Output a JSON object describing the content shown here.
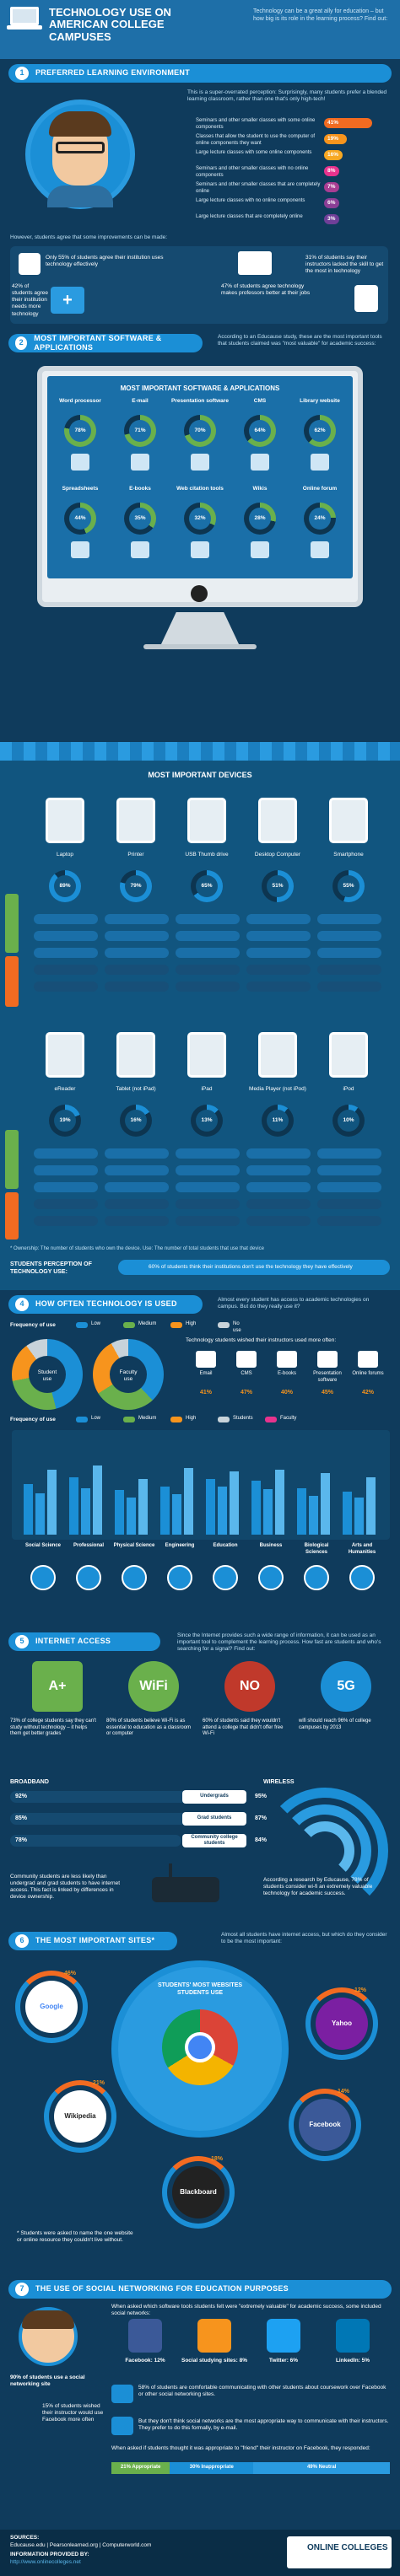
{
  "header": {
    "title": "TECHNOLOGY USE ON AMERICAN COLLEGE CAMPUSES",
    "intro": "Technology can be a great ally for education – but how big is its role in the learning process? Find out:"
  },
  "s1": {
    "num": "1",
    "heading": "PREFERRED LEARNING ENVIRONMENT",
    "lead": "This is a super-overrated perception: Surprisingly, many students prefer a blended learning classroom, rather than one that's only high-tech!",
    "options": [
      {
        "label": "Seminars and other smaller classes with some online components",
        "pct": "41%",
        "color": "#f26b21",
        "frac": 0.41
      },
      {
        "label": "Classes that allow the student to use the computer of online components they want",
        "pct": "19%",
        "color": "#f7941d",
        "frac": 0.19
      },
      {
        "label": "Large lecture classes with some online components",
        "pct": "16%",
        "color": "#f7a823",
        "frac": 0.16
      },
      {
        "label": "Seminars and other smaller classes with no online components",
        "pct": "8%",
        "color": "#e8338d",
        "frac": 0.08
      },
      {
        "label": "Seminars and other smaller classes that are completely online",
        "pct": "7%",
        "color": "#a83d93",
        "frac": 0.07
      },
      {
        "label": "Large lecture classes with no online components",
        "pct": "6%",
        "color": "#8b3e96",
        "frac": 0.06
      },
      {
        "label": "Large lecture classes that are completely online",
        "pct": "3%",
        "color": "#6f3f98",
        "frac": 0.03
      }
    ],
    "however": "However, students agree that some improvements can be made:",
    "facts": [
      "Only 55% of students agree their institution uses technology effectively",
      "31% of students say their instructors lacked the skill to get the most in technology",
      "42% of students agree their institution needs more technology",
      "47% of students agree technology makes professors better at their jobs"
    ]
  },
  "s2": {
    "num": "2",
    "heading": "MOST IMPORTANT SOFTWARE & APPLICATIONS",
    "lead": "According to an Educause study, these are the most important tools that students claimed was \"most valuable\" for academic success:",
    "screen_title": "MOST IMPORTANT SOFTWARE & APPLICATIONS",
    "apps": [
      {
        "label": "Word processor",
        "pct": "78%",
        "frac": 0.78
      },
      {
        "label": "E-mail",
        "pct": "71%",
        "frac": 0.71
      },
      {
        "label": "Presentation software",
        "pct": "70%",
        "frac": 0.7
      },
      {
        "label": "CMS",
        "pct": "64%",
        "frac": 0.64
      },
      {
        "label": "Library website",
        "pct": "62%",
        "frac": 0.62
      },
      {
        "label": "Spreadsheets",
        "pct": "44%",
        "frac": 0.44
      },
      {
        "label": "E-books",
        "pct": "35%",
        "frac": 0.35
      },
      {
        "label": "Web citation tools",
        "pct": "32%",
        "frac": 0.32
      },
      {
        "label": "Wikis",
        "pct": "28%",
        "frac": 0.28
      },
      {
        "label": "Online forum",
        "pct": "24%",
        "frac": 0.24
      }
    ]
  },
  "s3": {
    "num": "3",
    "heading": "MOST IMPORTANT DEVICES",
    "devices_row1": [
      "Laptop",
      "Printer",
      "USB Thumb drive",
      "Desktop Computer",
      "Smartphone"
    ],
    "pct_row1": [
      "89%",
      "79%",
      "65%",
      "51%",
      "55%"
    ],
    "devices_row2": [
      "eReader",
      "Tablet (not iPad)",
      "iPad",
      "Media Player (not iPod)",
      "iPod"
    ],
    "pct_row2": [
      "19%",
      "16%",
      "13%",
      "11%",
      "10%"
    ],
    "ownership_label": "Ownership",
    "importance_label": "Importance",
    "footnote": "* Ownership: The number of students who own the device. Use: The number of total students that use that device",
    "perception_title": "STUDENTS PERCEPTION OF TECHNOLOGY USE:",
    "perception_text": "60% of students think their institutions don't use the technology they have effectively"
  },
  "s4": {
    "num": "4",
    "heading": "HOW OFTEN TECHNOLOGY IS USED",
    "lead": "Almost every student has access to academic technologies on campus. But do they really use it?",
    "freq_label": "Frequency of use",
    "legend": [
      "Low",
      "Medium",
      "High",
      "No use"
    ],
    "donut1": "Student use",
    "donut2": "Faculty use",
    "faculty_lead": "Technology students wished their instructors used more often:",
    "wished": [
      {
        "label": "Email",
        "pct": "41%"
      },
      {
        "label": "CMS",
        "pct": "47%"
      },
      {
        "label": "E-books",
        "pct": "40%"
      },
      {
        "label": "Presentation software",
        "pct": "45%"
      },
      {
        "label": "Online forums",
        "pct": "42%"
      }
    ],
    "legend2": [
      "Low",
      "Medium",
      "High",
      "Students",
      "Faculty"
    ],
    "subjects": [
      "Social Science",
      "Professional",
      "Physical Science",
      "Engineering",
      "Education",
      "Business",
      "Biological Sciences",
      "Arts and Humanities"
    ]
  },
  "s5": {
    "num": "5",
    "heading": "INTERNET ACCESS",
    "lead": "Since the Internet provides such a wide range of information, it can be used as an important tool to complement the learning process. How fast are students and who's searching for a signal? Find out:",
    "stats": [
      {
        "big": "A+",
        "text": "73% of college students say they can't study without technology – it helps them get better grades"
      },
      {
        "big": "WiFi",
        "text": "80% of students believe Wi-Fi is as essential to education as a classroom or computer"
      },
      {
        "big": "NO",
        "text": "60% of students said they wouldn't attend a college that didn't offer free Wi-Fi"
      },
      {
        "big": "5G",
        "text": "wifi should reach 96% of college campuses by 2013"
      }
    ],
    "broadband_label": "BROADBAND",
    "wireless_label": "WIRELESS",
    "groups": [
      {
        "label": "Undergrads",
        "bb": "92%",
        "wl": "95%",
        "frac": 0.92
      },
      {
        "label": "Grad students",
        "bb": "85%",
        "wl": "87%",
        "frac": 0.85
      },
      {
        "label": "Community college students",
        "bb": "78%",
        "wl": "84%",
        "frac": 0.78
      }
    ],
    "note_left": "Community students are less likely than undergrad and grad students to have internet access. This fact is linked by differences in device ownership.",
    "note_right": "According a research by Educause, 78% of students consider wi-fi an extremely valuable technology for academic success."
  },
  "s6": {
    "num": "6",
    "heading": "THE MOST IMPORTANT SITES*",
    "lead": "Almost all students have internet access, but which do they consider to be the most important:",
    "circle_title": "STUDENTS' MOST WEBSITES STUDENTS USE",
    "sites": [
      {
        "name": "Google",
        "pct": "46%"
      },
      {
        "name": "Yahoo",
        "pct": "12%"
      },
      {
        "name": "Wikipedia",
        "pct": "21%"
      },
      {
        "name": "Facebook",
        "pct": "14%"
      },
      {
        "name": "Blackboard",
        "pct": "18%"
      }
    ],
    "footnote": "* Students were asked to name the one website or online resource they couldn't live without."
  },
  "s7": {
    "num": "7",
    "heading": "THE USE OF SOCIAL NETWORKING FOR EDUCATION PURPOSES",
    "lead": "When asked which software tools students felt were \"extremely valuable\" for academic success, some included social networks:",
    "networks": [
      {
        "label": "Facebook: 12%",
        "color": "#3b5998"
      },
      {
        "label": "Social studying sites: 8%",
        "color": "#f7941d"
      },
      {
        "label": "Twitter: 6%",
        "color": "#1da1f2"
      },
      {
        "label": "LinkedIn: 5%",
        "color": "#0077b5"
      }
    ],
    "stat1": "90% of students use a social networking site",
    "stat2": "15% of students wished their instructor would use Facebook more often",
    "like_text": "58% of students are comfortable communicating with other students about coursework over Facebook or other social networking sites.",
    "dislike_text": "But they don't think social networks are the most appropriate way to communicate with their instructors. They prefer to do this formally, by e-mail.",
    "friend_lead": "When asked if students thought it was appropriate to \"friend\" their instructor on Facebook, they responded:",
    "friend_bars": [
      "21% Appropriate",
      "30% Inappropriate",
      "49% Neutral"
    ]
  },
  "footer": {
    "sources_title": "SOURCES:",
    "sources": "Educause.edu | Pearsonlearned.org | Computerworld.com",
    "info_title": "INFORMATION PROVIDED BY:",
    "info": "http://www.onlinecolleges.net",
    "logo": "ONLINE COLLEGES"
  }
}
